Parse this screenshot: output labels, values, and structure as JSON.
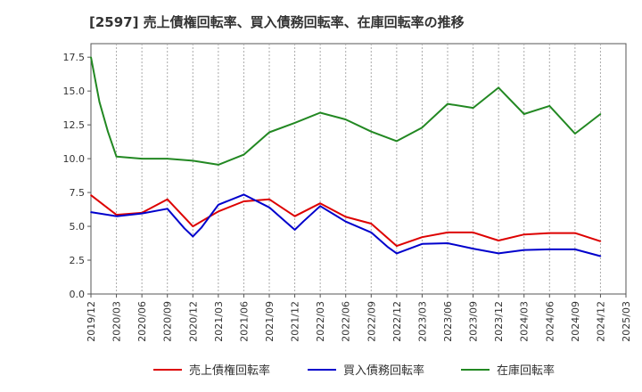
{
  "chart_data": {
    "type": "line",
    "title": "[2597]  売上債権回転率、買入債務回転率、在庫回転率の推移",
    "xlabel": "",
    "ylabel": "",
    "ylim": [
      0,
      18.5
    ],
    "yticks": [
      0.0,
      2.5,
      5.0,
      7.5,
      10.0,
      12.5,
      15.0,
      17.5
    ],
    "ytick_labels": [
      "0.0",
      "2.5",
      "5.0",
      "7.5",
      "10.0",
      "12.5",
      "15.0",
      "17.5"
    ],
    "xticks": [
      "2019/12",
      "2020/03",
      "2020/06",
      "2020/09",
      "2020/12",
      "2021/03",
      "2021/06",
      "2021/09",
      "2021/12",
      "2022/03",
      "2022/06",
      "2022/09",
      "2022/12",
      "2023/03",
      "2023/06",
      "2023/09",
      "2023/12",
      "2024/03",
      "2024/06",
      "2024/09",
      "2024/12",
      "2025/03"
    ],
    "grid": "vertical-dashed",
    "legend_position": "bottom",
    "series": [
      {
        "name": "売上債権回転率",
        "color": "#dd0000",
        "x": [
          "2019/12",
          "2020/03",
          "2020/06",
          "2020/09",
          "2020/12",
          "2021/03",
          "2021/06",
          "2021/09",
          "2021/12",
          "2022/03",
          "2022/06",
          "2022/09",
          "2022/12",
          "2023/03",
          "2023/06",
          "2023/09",
          "2023/12",
          "2024/03",
          "2024/06",
          "2024/09",
          "2024/12"
        ],
        "values": [
          7.3,
          5.85,
          6.0,
          7.0,
          5.0,
          6.1,
          6.85,
          7.0,
          5.75,
          6.7,
          5.7,
          5.2,
          3.55,
          4.2,
          4.55,
          4.55,
          3.95,
          4.4,
          4.5,
          4.5,
          3.9
        ]
      },
      {
        "name": "買入債務回転率",
        "color": "#0000cc",
        "x": [
          "2019/12",
          "2020/03",
          "2020/06",
          "2020/09",
          "2020/11",
          "2020/12",
          "2021/01",
          "2021/03",
          "2021/06",
          "2021/09",
          "2021/11",
          "2021/12",
          "2022/01",
          "2022/03",
          "2022/06",
          "2022/09",
          "2022/11",
          "2022/12",
          "2023/03",
          "2023/06",
          "2023/09",
          "2023/12",
          "2024/03",
          "2024/06",
          "2024/09",
          "2024/12"
        ],
        "values": [
          6.05,
          5.75,
          5.95,
          6.3,
          4.85,
          4.25,
          4.9,
          6.6,
          7.35,
          6.4,
          5.3,
          4.75,
          5.35,
          6.5,
          5.35,
          4.55,
          3.45,
          3.0,
          3.7,
          3.75,
          3.35,
          3.0,
          3.25,
          3.3,
          3.3,
          2.8
        ]
      },
      {
        "name": "在庫回転率",
        "color": "#228822",
        "x": [
          "2019/12",
          "2020/01",
          "2020/02",
          "2020/03",
          "2020/06",
          "2020/09",
          "2020/12",
          "2021/03",
          "2021/06",
          "2021/09",
          "2021/12",
          "2022/03",
          "2022/06",
          "2022/09",
          "2022/12",
          "2023/03",
          "2023/06",
          "2023/09",
          "2023/12",
          "2024/03",
          "2024/06",
          "2024/09",
          "2024/12"
        ],
        "values": [
          17.5,
          14.2,
          12.0,
          10.15,
          10.0,
          10.0,
          9.85,
          9.55,
          10.3,
          11.95,
          12.65,
          13.4,
          12.9,
          12.0,
          11.3,
          12.3,
          14.05,
          13.75,
          15.25,
          13.3,
          13.9,
          11.85,
          13.3
        ]
      }
    ]
  }
}
